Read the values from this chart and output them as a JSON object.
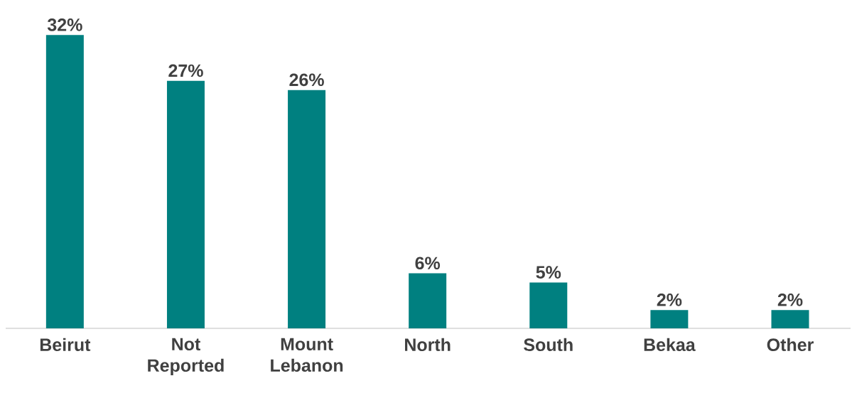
{
  "chart_data": {
    "type": "bar",
    "categories": [
      "Beirut",
      "Not Reported",
      "Mount Lebanon",
      "North",
      "South",
      "Bekaa",
      "Other"
    ],
    "values": [
      32,
      27,
      26,
      6,
      5,
      2,
      2
    ],
    "value_labels": [
      "32%",
      "27%",
      "26%",
      "6%",
      "5%",
      "2%",
      "2%"
    ],
    "color": "#008080"
  }
}
